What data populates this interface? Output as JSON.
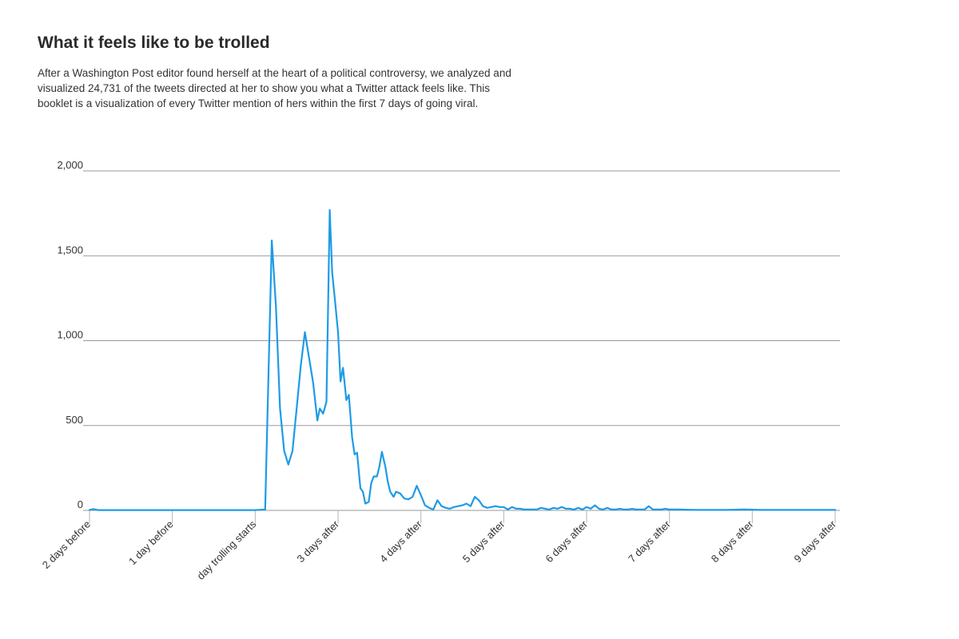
{
  "title": "What it feels like to be trolled",
  "subtitle": "After a Washington Post editor found herself at the heart of a political controversy, we analyzed and visualized 24,731 of the tweets directed at her to show you what a Twitter attack feels like. This booklet is a visualization of every Twitter mention of hers within the first 7 days of going viral.",
  "colors": {
    "line": "#1e9be6",
    "grid": "#9a9a9a",
    "text": "#333333"
  },
  "chart_data": {
    "type": "line",
    "title": "What it feels like to be trolled",
    "xlabel": "",
    "ylabel": "",
    "ylim": [
      0,
      2000
    ],
    "xlim": [
      0,
      9
    ],
    "grid": true,
    "legend": "none",
    "y_ticks": [
      {
        "value": 0,
        "label": "0"
      },
      {
        "value": 500,
        "label": "500"
      },
      {
        "value": 1000,
        "label": "1,000"
      },
      {
        "value": 1500,
        "label": "1,500"
      },
      {
        "value": 2000,
        "label": "2,000"
      }
    ],
    "x_ticks": [
      {
        "value": 0,
        "label": "2 days before"
      },
      {
        "value": 1,
        "label": "1 day before"
      },
      {
        "value": 2,
        "label": "day trolling starts"
      },
      {
        "value": 3,
        "label": "3 days after"
      },
      {
        "value": 4,
        "label": "4 days after"
      },
      {
        "value": 5,
        "label": "5 days after"
      },
      {
        "value": 6,
        "label": "6 days after"
      },
      {
        "value": 7,
        "label": "7 days after"
      },
      {
        "value": 8,
        "label": "8 days after"
      },
      {
        "value": 9,
        "label": "9 days after"
      }
    ],
    "series": [
      {
        "x": [
          0,
          0.05,
          0.1,
          0.5,
          1.0,
          1.5,
          2.0,
          2.12,
          2.15,
          2.2,
          2.25,
          2.3,
          2.35,
          2.4,
          2.45,
          2.5,
          2.55,
          2.6,
          2.65,
          2.7,
          2.75,
          2.78,
          2.82,
          2.86,
          2.9,
          2.93,
          2.96,
          3.0,
          3.03,
          3.06,
          3.1,
          3.13,
          3.17,
          3.2,
          3.23,
          3.27,
          3.3,
          3.33,
          3.37,
          3.4,
          3.43,
          3.47,
          3.5,
          3.53,
          3.57,
          3.6,
          3.63,
          3.67,
          3.7,
          3.75,
          3.8,
          3.85,
          3.9,
          3.95,
          4.0,
          4.05,
          4.1,
          4.15,
          4.2,
          4.25,
          4.3,
          4.35,
          4.4,
          4.45,
          4.5,
          4.55,
          4.6,
          4.65,
          4.7,
          4.75,
          4.8,
          4.85,
          4.9,
          4.95,
          5.0,
          5.05,
          5.1,
          5.15,
          5.2,
          5.25,
          5.3,
          5.35,
          5.4,
          5.45,
          5.5,
          5.55,
          5.6,
          5.65,
          5.7,
          5.75,
          5.8,
          5.85,
          5.9,
          5.95,
          6.0,
          6.05,
          6.1,
          6.15,
          6.2,
          6.25,
          6.3,
          6.35,
          6.4,
          6.45,
          6.5,
          6.55,
          6.6,
          6.65,
          6.7,
          6.75,
          6.8,
          6.85,
          6.9,
          6.95,
          7.0,
          7.1,
          7.3,
          7.5,
          7.7,
          7.9,
          8.1,
          8.3,
          8.5,
          8.7,
          8.9,
          9.0
        ],
        "values": [
          3,
          8,
          2,
          2,
          2,
          2,
          2,
          5,
          600,
          1590,
          1200,
          600,
          350,
          270,
          350,
          600,
          850,
          1050,
          900,
          750,
          530,
          600,
          570,
          640,
          1770,
          1400,
          1250,
          1050,
          760,
          840,
          650,
          680,
          430,
          330,
          340,
          130,
          110,
          40,
          50,
          160,
          200,
          200,
          260,
          345,
          260,
          170,
          110,
          80,
          110,
          100,
          70,
          65,
          80,
          145,
          90,
          30,
          15,
          5,
          60,
          25,
          15,
          10,
          20,
          25,
          30,
          40,
          25,
          80,
          60,
          25,
          15,
          20,
          25,
          20,
          20,
          5,
          20,
          10,
          10,
          5,
          5,
          5,
          5,
          15,
          10,
          5,
          15,
          10,
          20,
          10,
          10,
          5,
          15,
          5,
          20,
          10,
          30,
          10,
          5,
          15,
          5,
          5,
          10,
          5,
          5,
          10,
          5,
          5,
          5,
          25,
          5,
          5,
          5,
          10,
          5,
          5,
          3,
          3,
          3,
          5,
          3,
          3,
          3,
          3,
          3,
          3
        ]
      }
    ]
  }
}
